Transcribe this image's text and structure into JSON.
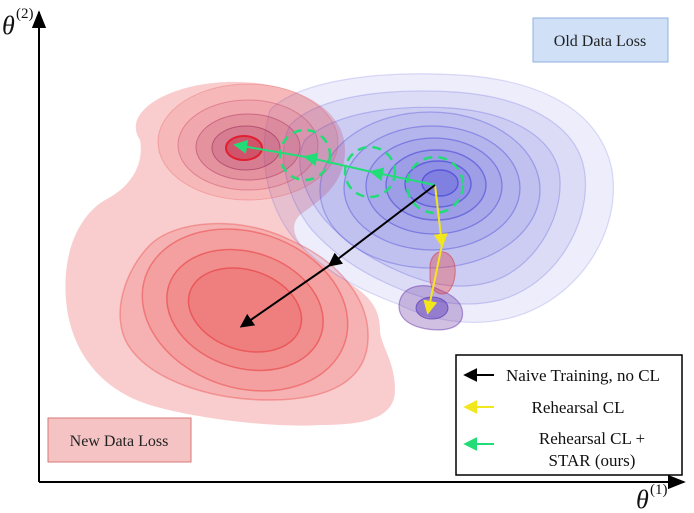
{
  "axes": {
    "y_label": "θ",
    "y_sup": "(2)",
    "x_label": "θ",
    "x_sup": "(1)"
  },
  "old_data_loss": {
    "label": "Old Data Loss",
    "color": "#4a4ad6",
    "box_fill": "#cfe0f7",
    "box_stroke": "#8fb0e0"
  },
  "new_data_loss": {
    "label": "New Data Loss",
    "color": "#e8383a",
    "box_fill": "#f5c3c3",
    "box_stroke": "#d77a7a"
  },
  "legend": {
    "items": [
      {
        "label": "Naive Training, no CL",
        "color": "#000000"
      },
      {
        "label": "Rehearsal CL",
        "color": "#f2e61d"
      },
      {
        "label_line1": "Rehearsal CL +",
        "label_line2": "STAR (ours)",
        "color": "#22dd77"
      }
    ]
  }
}
